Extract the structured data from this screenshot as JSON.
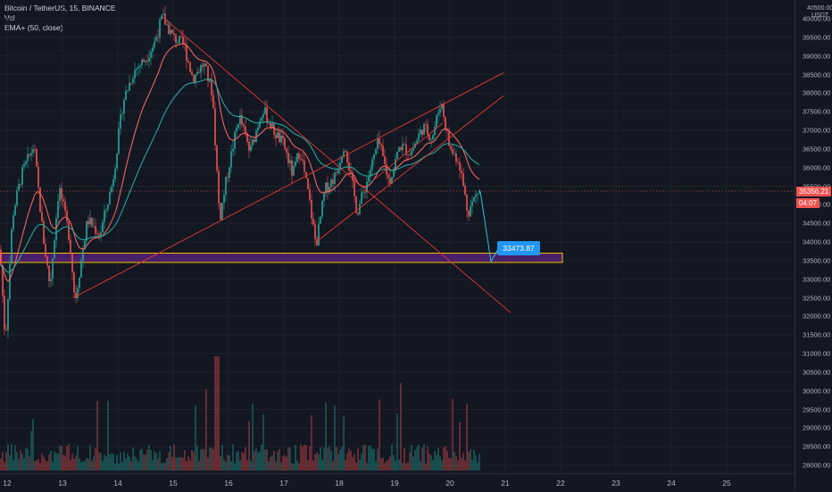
{
  "legend": {
    "symbol_line": "Bitcoin / TetherUS, 15, BINANCE",
    "vol_label": "Vol",
    "ema_label": "EMA+ (50, close)"
  },
  "currency": {
    "line1": "USDT"
  },
  "price_axis": {
    "ticks": [
      "40000.00",
      "39500.00",
      "39000.00",
      "38500.00",
      "38000.00",
      "37500.00",
      "37000.00",
      "36500.00",
      "36000.00",
      "35500.00",
      "35000.00",
      "34500.00",
      "34000.00",
      "33500.00",
      "33000.00",
      "32500.00",
      "32000.00",
      "31500.00",
      "31000.00",
      "30500.00",
      "30000.00",
      "29500.00",
      "29000.00",
      "28500.00",
      "28000.00"
    ],
    "top_label": "40500.00"
  },
  "time_axis": {
    "labels": [
      "12",
      "13",
      "14",
      "15",
      "16",
      "17",
      "18",
      "19",
      "20",
      "21",
      "22",
      "23",
      "24",
      "25"
    ]
  },
  "current_price": {
    "value": "35356.21",
    "countdown": "04:07"
  },
  "target_label": "33473.87",
  "colors": {
    "background": "#131722",
    "up": "#26a69a",
    "down": "#ef5350",
    "ema": "#26a69a",
    "ema2": "#f06460",
    "trendline": "#e53935",
    "zone_fill": "#4a1f6a",
    "zone_border": "#f0c000",
    "projection": "#26c6da",
    "price_tag": "#ef5350"
  },
  "chart_data": {
    "type": "candlestick",
    "symbol": "Bitcoin / TetherUS",
    "timeframe": "15",
    "exchange": "BINANCE",
    "x_days": [
      "12",
      "13",
      "14",
      "15",
      "16",
      "17",
      "18",
      "19",
      "20",
      "21",
      "22",
      "23",
      "24",
      "25"
    ],
    "ylim": [
      27900,
      40600
    ],
    "key_prices": {
      "day15_high": 40050,
      "day13_low": 32400,
      "day12_low": 31300,
      "day17_low": 33900,
      "day20_high": 37800,
      "current": 35356.21,
      "target": 33473.87
    },
    "zone": {
      "top": 33700,
      "bottom": 33450
    },
    "grid": true,
    "legend_placement": "top-left"
  }
}
